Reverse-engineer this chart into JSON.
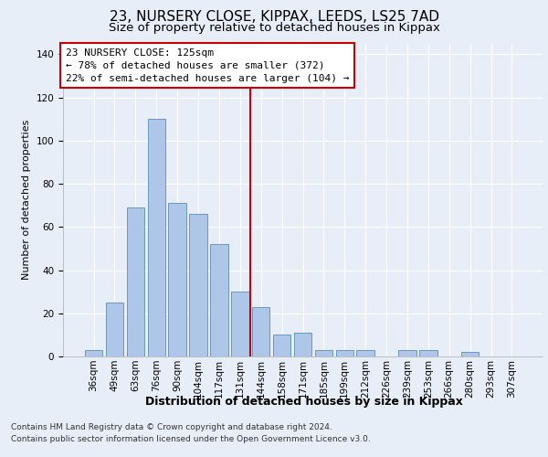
{
  "title1": "23, NURSERY CLOSE, KIPPAX, LEEDS, LS25 7AD",
  "title2": "Size of property relative to detached houses in Kippax",
  "xlabel": "Distribution of detached houses by size in Kippax",
  "ylabel": "Number of detached properties",
  "categories": [
    "36sqm",
    "49sqm",
    "63sqm",
    "76sqm",
    "90sqm",
    "104sqm",
    "117sqm",
    "131sqm",
    "144sqm",
    "158sqm",
    "171sqm",
    "185sqm",
    "199sqm",
    "212sqm",
    "226sqm",
    "239sqm",
    "253sqm",
    "266sqm",
    "280sqm",
    "293sqm",
    "307sqm"
  ],
  "values": [
    3,
    25,
    69,
    110,
    71,
    66,
    52,
    30,
    23,
    10,
    11,
    3,
    3,
    3,
    0,
    3,
    3,
    0,
    2,
    0,
    0
  ],
  "bar_color": "#aec6e8",
  "bar_edge_color": "#5b8db8",
  "vline_color": "#cc0000",
  "annotation_text": "23 NURSERY CLOSE: 125sqm\n← 78% of detached houses are smaller (372)\n22% of semi-detached houses are larger (104) →",
  "annotation_box_color": "#ffffff",
  "annotation_box_edge": "#cc0000",
  "bg_color": "#e8eef7",
  "plot_bg_color": "#e8eef7",
  "grid_color": "#ffffff",
  "footer1": "Contains HM Land Registry data © Crown copyright and database right 2024.",
  "footer2": "Contains public sector information licensed under the Open Government Licence v3.0.",
  "ylim": [
    0,
    145
  ],
  "title1_fontsize": 11,
  "title2_fontsize": 9.5,
  "ylabel_fontsize": 8,
  "xlabel_fontsize": 9,
  "tick_fontsize": 7.5,
  "annotation_fontsize": 8,
  "footer_fontsize": 6.5
}
